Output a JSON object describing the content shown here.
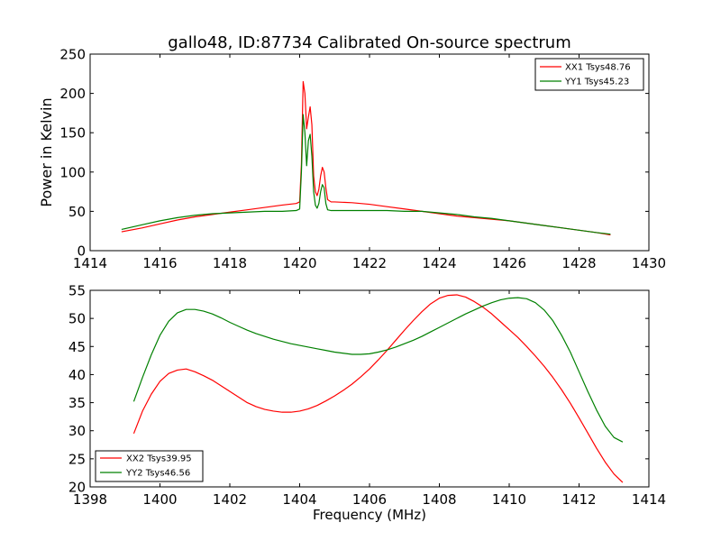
{
  "figure": {
    "title": "gallo48, ID:87734 Calibrated On-source spectrum"
  },
  "chart_data": [
    {
      "type": "line",
      "title": "gallo48, ID:87734 Calibrated On-source spectrum",
      "xlabel": "",
      "ylabel": "Power in Kelvin",
      "xlim": [
        1414,
        1430
      ],
      "ylim": [
        0,
        250
      ],
      "xticks": [
        1414,
        1416,
        1418,
        1420,
        1422,
        1424,
        1426,
        1428,
        1430
      ],
      "yticks": [
        0,
        50,
        100,
        150,
        200,
        250
      ],
      "grid": false,
      "legend_position": "top-right",
      "series": [
        {
          "name": "XX1 Tsys48.76",
          "color": "#ff0000",
          "x": [
            1414.9,
            1415.5,
            1416.0,
            1416.5,
            1417.0,
            1417.5,
            1418.0,
            1418.5,
            1419.0,
            1419.5,
            1419.9,
            1420.0,
            1420.05,
            1420.1,
            1420.15,
            1420.2,
            1420.25,
            1420.3,
            1420.35,
            1420.4,
            1420.45,
            1420.5,
            1420.55,
            1420.6,
            1420.65,
            1420.7,
            1420.75,
            1420.8,
            1420.9,
            1421.0,
            1421.5,
            1422.0,
            1422.5,
            1423.0,
            1423.5,
            1424.0,
            1424.5,
            1425.0,
            1425.5,
            1426.0,
            1426.5,
            1427.0,
            1427.5,
            1428.0,
            1428.5,
            1428.9
          ],
          "values": [
            24,
            29,
            34,
            39,
            43,
            46,
            49,
            52,
            55,
            58,
            60,
            62,
            110,
            215,
            200,
            155,
            170,
            183,
            160,
            95,
            75,
            70,
            78,
            95,
            106,
            100,
            80,
            65,
            62,
            62,
            61,
            59,
            56,
            53,
            50,
            47,
            44,
            42,
            40,
            38,
            35,
            32,
            29,
            26,
            23,
            20
          ]
        },
        {
          "name": "YY1 Tsys45.23",
          "color": "#008000",
          "x": [
            1414.9,
            1415.5,
            1416.0,
            1416.5,
            1417.0,
            1417.5,
            1418.0,
            1418.5,
            1419.0,
            1419.5,
            1419.9,
            1420.0,
            1420.05,
            1420.1,
            1420.15,
            1420.2,
            1420.25,
            1420.3,
            1420.35,
            1420.4,
            1420.45,
            1420.5,
            1420.55,
            1420.6,
            1420.65,
            1420.7,
            1420.75,
            1420.8,
            1420.9,
            1421.0,
            1421.5,
            1422.0,
            1422.5,
            1423.0,
            1423.5,
            1424.0,
            1424.5,
            1425.0,
            1425.5,
            1426.0,
            1426.5,
            1427.0,
            1427.5,
            1428.0,
            1428.5,
            1428.9
          ],
          "values": [
            27,
            33,
            38,
            42,
            45,
            47,
            48,
            49,
            50,
            50,
            51,
            53,
            100,
            173,
            150,
            108,
            140,
            148,
            120,
            75,
            58,
            54,
            60,
            75,
            84,
            80,
            60,
            52,
            51,
            51,
            51,
            51,
            51,
            50,
            50,
            48,
            46,
            43,
            41,
            38,
            35,
            32,
            29,
            26,
            23,
            21
          ]
        }
      ]
    },
    {
      "type": "line",
      "title": "",
      "xlabel": "Frequency (MHz)",
      "ylabel": "",
      "xlim": [
        1398,
        1414
      ],
      "ylim": [
        20,
        55
      ],
      "xticks": [
        1398,
        1400,
        1402,
        1404,
        1406,
        1408,
        1410,
        1412,
        1414
      ],
      "yticks": [
        20,
        25,
        30,
        35,
        40,
        45,
        50,
        55
      ],
      "grid": false,
      "legend_position": "bottom-left",
      "series": [
        {
          "name": "XX2 Tsys39.95",
          "color": "#ff0000",
          "x": [
            1399.25,
            1399.5,
            1399.75,
            1400.0,
            1400.25,
            1400.5,
            1400.75,
            1401.0,
            1401.25,
            1401.5,
            1401.75,
            1402.0,
            1402.25,
            1402.5,
            1402.75,
            1403.0,
            1403.25,
            1403.5,
            1403.75,
            1404.0,
            1404.25,
            1404.5,
            1404.75,
            1405.0,
            1405.25,
            1405.5,
            1405.75,
            1406.0,
            1406.25,
            1406.5,
            1406.75,
            1407.0,
            1407.25,
            1407.5,
            1407.75,
            1408.0,
            1408.25,
            1408.5,
            1408.75,
            1409.0,
            1409.25,
            1409.5,
            1409.75,
            1410.0,
            1410.25,
            1410.5,
            1410.75,
            1411.0,
            1411.25,
            1411.5,
            1411.75,
            1412.0,
            1412.25,
            1412.5,
            1412.75,
            1413.0,
            1413.25
          ],
          "values": [
            29.5,
            33.5,
            36.5,
            38.8,
            40.2,
            40.8,
            41.0,
            40.5,
            39.8,
            39.0,
            38.0,
            37.0,
            36.0,
            35.0,
            34.3,
            33.8,
            33.5,
            33.3,
            33.3,
            33.5,
            33.9,
            34.5,
            35.3,
            36.2,
            37.2,
            38.3,
            39.6,
            41.0,
            42.6,
            44.3,
            46.1,
            47.9,
            49.6,
            51.2,
            52.6,
            53.6,
            54.1,
            54.2,
            53.8,
            53.0,
            52.0,
            50.8,
            49.4,
            48.0,
            46.6,
            45.0,
            43.3,
            41.5,
            39.5,
            37.3,
            34.9,
            32.3,
            29.6,
            26.9,
            24.4,
            22.3,
            20.8
          ]
        },
        {
          "name": "YY2 Tsys46.56",
          "color": "#008000",
          "x": [
            1399.25,
            1399.5,
            1399.75,
            1400.0,
            1400.25,
            1400.5,
            1400.75,
            1401.0,
            1401.25,
            1401.5,
            1401.75,
            1402.0,
            1402.25,
            1402.5,
            1402.75,
            1403.0,
            1403.25,
            1403.5,
            1403.75,
            1404.0,
            1404.25,
            1404.5,
            1404.75,
            1405.0,
            1405.25,
            1405.5,
            1405.75,
            1406.0,
            1406.25,
            1406.5,
            1406.75,
            1407.0,
            1407.25,
            1407.5,
            1407.75,
            1408.0,
            1408.25,
            1408.5,
            1408.75,
            1409.0,
            1409.25,
            1409.5,
            1409.75,
            1410.0,
            1410.25,
            1410.5,
            1410.75,
            1411.0,
            1411.25,
            1411.5,
            1411.75,
            1412.0,
            1412.25,
            1412.5,
            1412.75,
            1413.0,
            1413.25
          ],
          "values": [
            35.2,
            39.5,
            43.5,
            47.0,
            49.5,
            51.0,
            51.6,
            51.6,
            51.3,
            50.8,
            50.1,
            49.3,
            48.6,
            47.9,
            47.3,
            46.8,
            46.3,
            45.9,
            45.5,
            45.2,
            44.9,
            44.6,
            44.3,
            44.0,
            43.8,
            43.6,
            43.6,
            43.7,
            44.0,
            44.4,
            44.9,
            45.5,
            46.1,
            46.8,
            47.6,
            48.4,
            49.2,
            50.0,
            50.8,
            51.5,
            52.2,
            52.8,
            53.3,
            53.6,
            53.7,
            53.5,
            52.8,
            51.5,
            49.6,
            47.0,
            44.0,
            40.5,
            37.0,
            33.7,
            30.8,
            28.8,
            28.0
          ]
        }
      ]
    }
  ]
}
